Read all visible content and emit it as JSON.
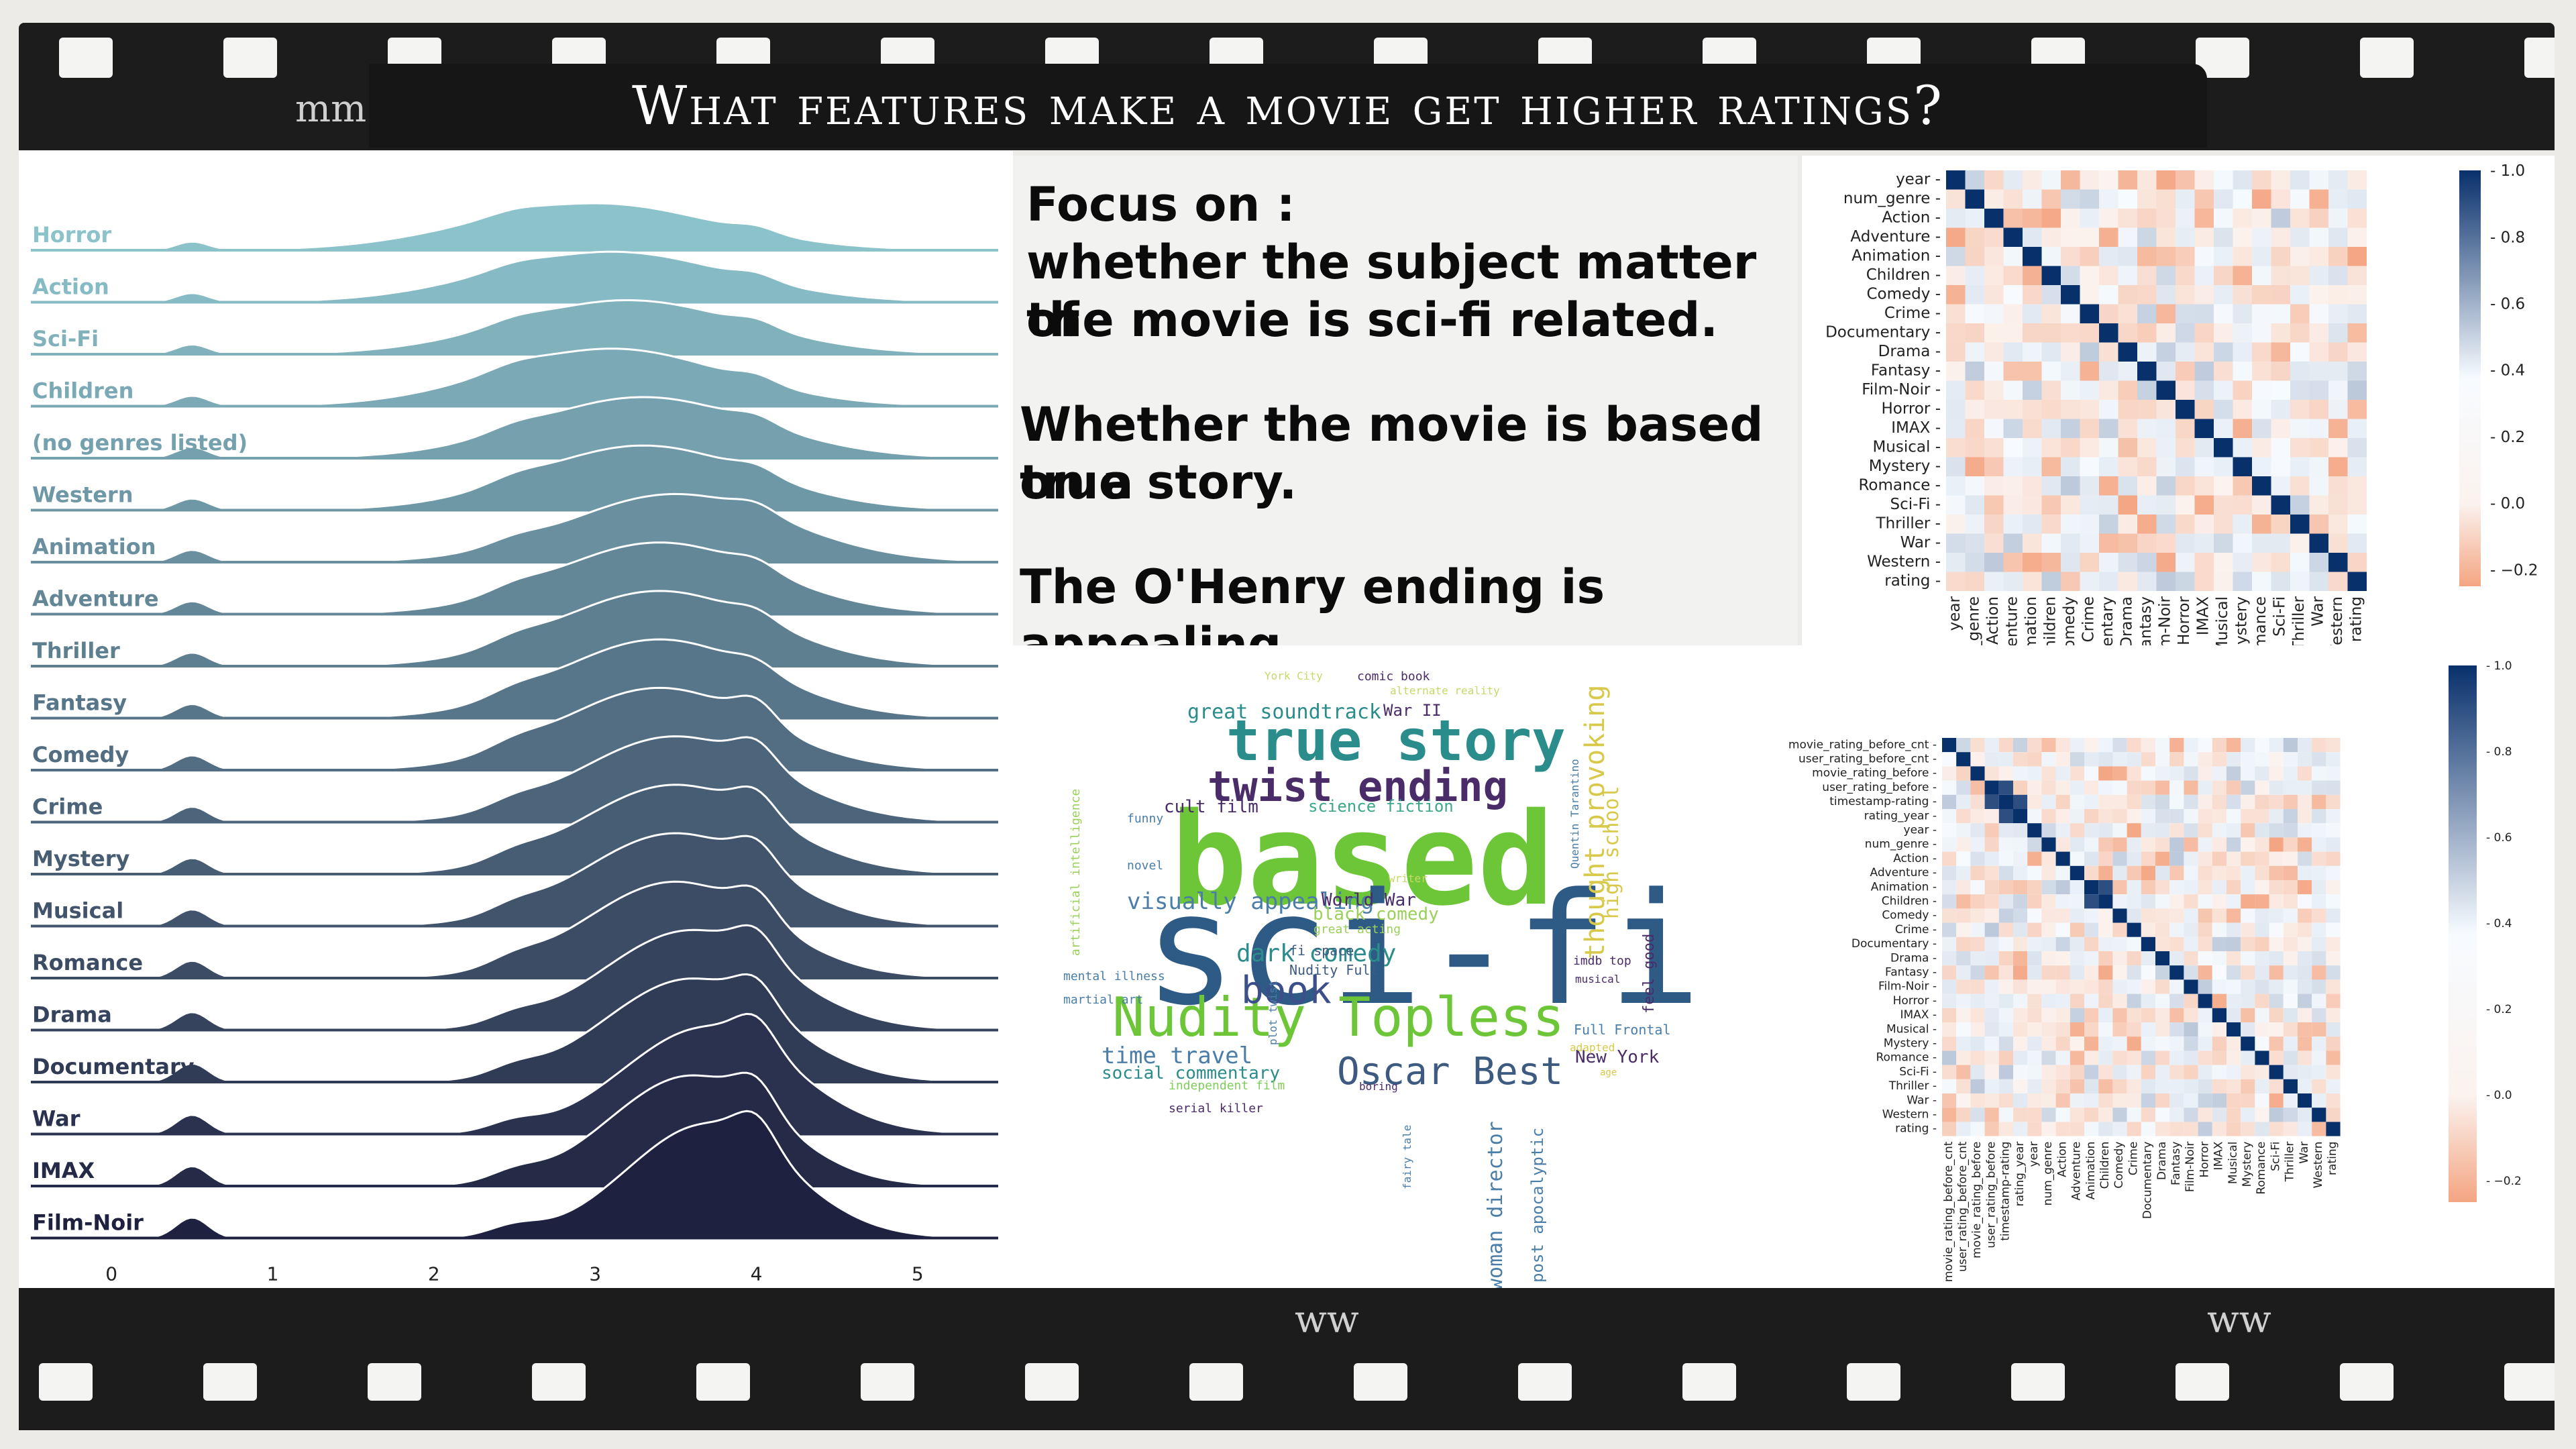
{
  "title": "What features make a movie get higher ratings?",
  "filmstrip": {
    "mark_top": "mm",
    "mark_bottom_a": "ww",
    "mark_bottom_b": "ww"
  },
  "focus": {
    "line1": "Focus on :",
    "line2": "whether the subject matter of",
    "line3": "the movie is sci-fi related.",
    "line4": "Whether the movie is based on a",
    "line5": "true story.",
    "line6": "The O'Henry ending is appealing."
  },
  "colors": {
    "ridge_light": "#8cc3cb",
    "ridge_dark": "#1f2140",
    "heat_pos": "#08306b",
    "heat_neg": "#f4a582",
    "wc_green": "#6dc637",
    "wc_blue": "#2e5b86",
    "wc_teal": "#2b8c8c",
    "wc_purple": "#4a2c69"
  },
  "chart_data": [
    {
      "type": "area",
      "subtype": "ridgeline",
      "xlabel": "rating",
      "x_ticks": [
        0,
        1,
        2,
        3,
        4,
        5
      ],
      "xlim": [
        -0.5,
        5.5
      ],
      "categories": [
        "Horror",
        "Action",
        "Sci-Fi",
        "Children",
        "(no genres listed)",
        "Western",
        "Animation",
        "Adventure",
        "Thriller",
        "Fantasy",
        "Comedy",
        "Crime",
        "Mystery",
        "Musical",
        "Romance",
        "Drama",
        "Documentary",
        "War",
        "IMAX",
        "Film-Noir"
      ],
      "density_peaks": [
        3.0,
        3.1,
        3.2,
        3.1,
        3.3,
        3.3,
        3.5,
        3.4,
        3.4,
        3.4,
        3.4,
        3.5,
        3.5,
        3.5,
        3.5,
        3.6,
        3.6,
        3.7,
        3.6,
        3.7
      ]
    },
    {
      "type": "heatmap",
      "labels": [
        "year",
        "num_genre",
        "Action",
        "Adventure",
        "Animation",
        "Children",
        "Comedy",
        "Crime",
        "Documentary",
        "Drama",
        "Fantasy",
        "Film-Noir",
        "Horror",
        "IMAX",
        "Musical",
        "Mystery",
        "Romance",
        "Sci-Fi",
        "Thriller",
        "War",
        "Western",
        "rating"
      ],
      "x_tick_labels": [
        "year",
        "num_genre",
        "Action",
        "Adventure",
        "Animation",
        "Children",
        "Comedy",
        "Crime",
        "Documentary",
        "Drama",
        "Fantasy",
        "Film-Noir",
        "Horror",
        "IMAX",
        "Musical",
        "Mystery",
        "Romance",
        "Sci-Fi",
        "Thriller",
        "War",
        "Western",
        "rating"
      ],
      "colorbar_ticks": [
        "1.0",
        "0.8",
        "0.6",
        "0.4",
        "0.2",
        "0.0",
        "−0.2"
      ],
      "colorbar_range": [
        -0.25,
        1.0
      ]
    },
    {
      "type": "heatmap",
      "labels": [
        "movie_rating_before_cnt",
        "user_rating_before_cnt",
        "movie_rating_before",
        "user_rating_before",
        "timestamp-rating",
        "rating_year",
        "year",
        "num_genre",
        "Action",
        "Adventure",
        "Animation",
        "Children",
        "Comedy",
        "Crime",
        "Documentary",
        "Drama",
        "Fantasy",
        "Film-Noir",
        "Horror",
        "IMAX",
        "Musical",
        "Mystery",
        "Romance",
        "Sci-Fi",
        "Thriller",
        "War",
        "Western",
        "rating"
      ],
      "colorbar_ticks": [
        "1.0",
        "0.8",
        "0.6",
        "0.4",
        "0.2",
        "0.0",
        "−0.2"
      ],
      "colorbar_range": [
        -0.25,
        1.0
      ]
    }
  ],
  "wordcloud": [
    {
      "text": "based",
      "size": 190,
      "color": "#6dc637",
      "weight": "bold"
    },
    {
      "text": "sci-fi",
      "size": 230,
      "color": "#2e5b86",
      "weight": "normal"
    },
    {
      "text": "true story",
      "size": 84,
      "color": "#2b8c8c",
      "weight": "bold"
    },
    {
      "text": "twist ending",
      "size": 62,
      "color": "#4a2c69",
      "weight": "bold"
    },
    {
      "text": "Nudity Topless",
      "size": 80,
      "color": "#6dc637",
      "weight": "normal"
    },
    {
      "text": "Oscar Best",
      "size": 56,
      "color": "#3d5a80",
      "weight": "normal"
    },
    {
      "text": "book",
      "size": 56,
      "color": "#3d4f8a",
      "weight": "normal"
    },
    {
      "text": "dark comedy",
      "size": 36,
      "color": "#2b8c8c",
      "weight": "normal"
    },
    {
      "text": "visually appealing",
      "size": 34,
      "color": "#4a7ea8",
      "weight": "normal"
    },
    {
      "text": "great soundtrack",
      "size": 30,
      "color": "#2b8c8c",
      "weight": "normal"
    },
    {
      "text": "time travel",
      "size": 34,
      "color": "#4a7ea8",
      "weight": "normal"
    },
    {
      "text": "social commentary",
      "size": 26,
      "color": "#2b8c8c",
      "weight": "normal"
    },
    {
      "text": "cult film",
      "size": 26,
      "color": "#4a2c69",
      "weight": "normal"
    },
    {
      "text": "science fiction",
      "size": 24,
      "color": "#3aa88a",
      "weight": "normal"
    },
    {
      "text": "World War",
      "size": 26,
      "color": "#4a2c69",
      "weight": "normal"
    },
    {
      "text": "black comedy",
      "size": 26,
      "color": "#9bd15a",
      "weight": "normal"
    },
    {
      "text": "War II",
      "size": 24,
      "color": "#4a2c69",
      "weight": "normal"
    },
    {
      "text": "New York",
      "size": 26,
      "color": "#4a2c69",
      "weight": "normal"
    },
    {
      "text": "Full Frontal",
      "size": 20,
      "color": "#4a7ea8",
      "weight": "normal"
    },
    {
      "text": "fi space",
      "size": 20,
      "color": "#3d5a80",
      "weight": "normal"
    },
    {
      "text": "Nudity Full",
      "size": 20,
      "color": "#3d5a80",
      "weight": "normal"
    },
    {
      "text": "mental illness",
      "size": 18,
      "color": "#4a7ea8",
      "weight": "normal"
    },
    {
      "text": "martial art",
      "size": 18,
      "color": "#4a7ea8",
      "weight": "normal"
    },
    {
      "text": "independent film",
      "size": 18,
      "color": "#7fcd5a",
      "weight": "normal"
    },
    {
      "text": "serial killer",
      "size": 18,
      "color": "#4a2c69",
      "weight": "normal"
    },
    {
      "text": "great acting",
      "size": 18,
      "color": "#9bd15a",
      "weight": "normal"
    },
    {
      "text": "imdb top",
      "size": 18,
      "color": "#4a2c69",
      "weight": "normal"
    },
    {
      "text": "musical",
      "size": 16,
      "color": "#4a2c69",
      "weight": "normal"
    },
    {
      "text": "boring",
      "size": 16,
      "color": "#4a2c69",
      "weight": "normal"
    },
    {
      "text": "funny",
      "size": 18,
      "color": "#4a7ea8",
      "weight": "normal"
    },
    {
      "text": "novel",
      "size": 18,
      "color": "#4a7ea8",
      "weight": "normal"
    },
    {
      "text": "writer",
      "size": 16,
      "color": "#c8d86a",
      "weight": "normal"
    },
    {
      "text": "comic book",
      "size": 18,
      "color": "#4a2c69",
      "weight": "normal"
    },
    {
      "text": "alternate reality",
      "size": 16,
      "color": "#c8d86a",
      "weight": "normal"
    },
    {
      "text": "York City",
      "size": 16,
      "color": "#c8d86a",
      "weight": "normal"
    },
    {
      "text": "Quentin Tarantino",
      "size": 16,
      "color": "#4a7ea8",
      "weight": "normal",
      "rotate": true
    },
    {
      "text": "thought provoking",
      "size": 40,
      "color": "#d8c94a",
      "weight": "normal",
      "rotate": true
    },
    {
      "text": "high school",
      "size": 30,
      "color": "#d8c94a",
      "weight": "normal",
      "rotate": true
    },
    {
      "text": "feel good",
      "size": 22,
      "color": "#4a2c69",
      "weight": "normal",
      "rotate": true
    },
    {
      "text": "artificial intelligence",
      "size": 18,
      "color": "#9bd15a",
      "weight": "normal",
      "rotate": true
    },
    {
      "text": "woman director",
      "size": 30,
      "color": "#4a7ea8",
      "weight": "normal",
      "rotate": true
    },
    {
      "text": "post apocalyptic",
      "size": 24,
      "color": "#4a7ea8",
      "weight": "normal",
      "rotate": true
    },
    {
      "text": "fairy tale",
      "size": 16,
      "color": "#4a7ea8",
      "weight": "normal",
      "rotate": true
    },
    {
      "text": "plot twist",
      "size": 16,
      "color": "#4a7ea8",
      "weight": "normal",
      "rotate": true
    },
    {
      "text": "adapted",
      "size": 16,
      "color": "#d8c94a",
      "weight": "normal"
    },
    {
      "text": "age",
      "size": 14,
      "color": "#d8c94a",
      "weight": "normal"
    }
  ]
}
